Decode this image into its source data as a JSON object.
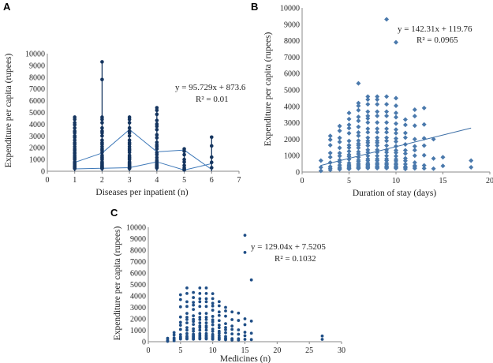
{
  "panels": {
    "a": "A",
    "b": "B",
    "c": "C"
  },
  "colors": {
    "marker_a": "#15355f",
    "line_a": "#3d78b8",
    "marker_b": "#4a79ac",
    "trend_b": "#3d6fa6",
    "marker_c": "#1f4e86",
    "axis": "#888888"
  },
  "chart_data": [
    {
      "id": "A",
      "type": "scatter",
      "xlabel": "Diseases per inpatient (n)",
      "ylabel": "Expenditure per capita (rupees)",
      "xlim": [
        0,
        7
      ],
      "ylim": [
        0,
        10000
      ],
      "xticks": [
        0,
        1,
        2,
        3,
        4,
        5,
        6,
        7
      ],
      "yticks": [
        0,
        1000,
        2000,
        3000,
        4000,
        5000,
        6000,
        7000,
        8000,
        9000,
        10000
      ],
      "trendline": {
        "equation": "y = 95.729x + 873.6",
        "r2": "R² = 0.01",
        "connected_x": [
          1,
          2,
          3,
          4,
          5,
          6
        ],
        "connected_y": [
          750,
          1550,
          3550,
          1650,
          1800,
          150
        ]
      },
      "mean_series": {
        "x": [
          1,
          2,
          3,
          4,
          5,
          6
        ],
        "y": [
          200,
          250,
          300,
          800,
          100,
          650
        ]
      },
      "points": [
        {
          "x": 1,
          "ymin": 0,
          "ymax": 4600,
          "count": 32
        },
        {
          "x": 2,
          "ymin": 0,
          "ymax": 4600,
          "count": 28,
          "extra": [
            7800,
            9300
          ]
        },
        {
          "x": 3,
          "ymin": 0,
          "ymax": 4600,
          "count": 28
        },
        {
          "x": 4,
          "ymin": 0,
          "ymax": 5400,
          "count": 24
        },
        {
          "x": 5,
          "ymin": 0,
          "ymax": 1900,
          "count": 8
        },
        {
          "x": 6,
          "ymin": 0,
          "ymax": 2900,
          "count": 4
        }
      ]
    },
    {
      "id": "B",
      "type": "scatter",
      "xlabel": "Duration of stay (days)",
      "ylabel": "Expenditure per capita (rupees)",
      "xlim": [
        0,
        20
      ],
      "ylim": [
        0,
        10000
      ],
      "xticks": [
        0,
        5,
        10,
        15,
        20
      ],
      "yticks": [
        0,
        1000,
        2000,
        3000,
        4000,
        5000,
        6000,
        7000,
        8000,
        9000,
        10000
      ],
      "trendline": {
        "equation": "y = 142.31x + 119.76",
        "r2": "R² = 0.0965",
        "slope": 142.31,
        "intercept": 119.76,
        "x_range": [
          2,
          18
        ]
      },
      "columns": [
        {
          "x": 2,
          "ymax": 700,
          "count": 2
        },
        {
          "x": 3,
          "ymax": 2200,
          "count": 8
        },
        {
          "x": 4,
          "ymax": 2800,
          "count": 12
        },
        {
          "x": 5,
          "ymax": 3600,
          "count": 18
        },
        {
          "x": 6,
          "ymax": 4200,
          "count": 22,
          "extra": [
            5400
          ]
        },
        {
          "x": 7,
          "ymax": 4600,
          "count": 24
        },
        {
          "x": 8,
          "ymax": 4600,
          "count": 22
        },
        {
          "x": 9,
          "ymax": 4600,
          "count": 20,
          "extra": [
            9300
          ]
        },
        {
          "x": 10,
          "ymax": 4500,
          "count": 20,
          "extra": [
            7900
          ]
        },
        {
          "x": 11,
          "ymax": 3200,
          "count": 12
        },
        {
          "x": 12,
          "ymax": 3800,
          "count": 10
        },
        {
          "x": 13,
          "ymax": 3900,
          "count": 6
        },
        {
          "x": 14,
          "ymax": 2000,
          "count": 2
        },
        {
          "x": 15,
          "ymax": 900,
          "count": 1
        },
        {
          "x": 18,
          "ymax": 700,
          "count": 1
        }
      ]
    },
    {
      "id": "C",
      "type": "scatter",
      "xlabel": "Medicines (n)",
      "ylabel": "Expenditure per capita (rupees)",
      "xlim": [
        0,
        30
      ],
      "ylim": [
        0,
        10000
      ],
      "xticks": [
        0,
        5,
        10,
        15,
        20,
        25,
        30
      ],
      "yticks": [
        0,
        1000,
        2000,
        3000,
        4000,
        5000,
        6000,
        7000,
        8000,
        9000,
        10000
      ],
      "trendline": {
        "equation": "y = 129.04x + 7.5205",
        "r2": "R² = 0.1032"
      },
      "columns": [
        {
          "x": 3,
          "ymax": 300,
          "count": 2
        },
        {
          "x": 4,
          "ymax": 800,
          "count": 4
        },
        {
          "x": 5,
          "ymax": 4100,
          "count": 10
        },
        {
          "x": 6,
          "ymax": 4700,
          "count": 14
        },
        {
          "x": 7,
          "ymax": 4300,
          "count": 16
        },
        {
          "x": 8,
          "ymax": 4700,
          "count": 18
        },
        {
          "x": 9,
          "ymax": 4700,
          "count": 18
        },
        {
          "x": 10,
          "ymax": 4200,
          "count": 16
        },
        {
          "x": 11,
          "ymax": 3500,
          "count": 12
        },
        {
          "x": 12,
          "ymax": 3000,
          "count": 10
        },
        {
          "x": 13,
          "ymax": 2600,
          "count": 6
        },
        {
          "x": 14,
          "ymax": 2500,
          "count": 5
        },
        {
          "x": 15,
          "ymax": 2000,
          "count": 4,
          "extra": [
            7800,
            9300
          ]
        },
        {
          "x": 16,
          "ymax": 1800,
          "count": 2,
          "extra": [
            5400
          ]
        },
        {
          "x": 27,
          "ymax": 500,
          "count": 1
        }
      ]
    }
  ]
}
